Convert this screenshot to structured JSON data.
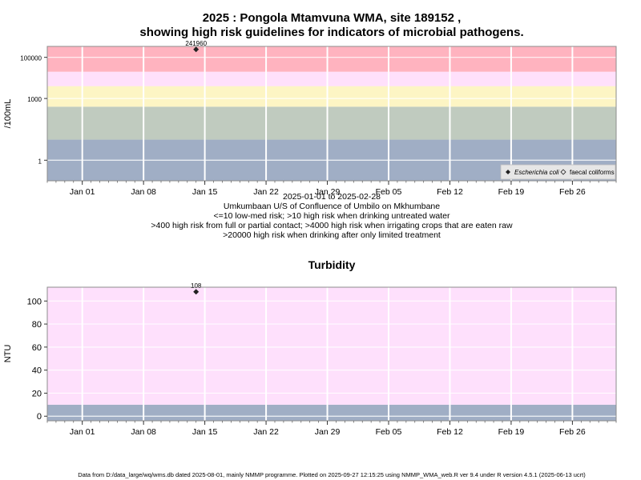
{
  "main_title": [
    "2025 : Pongola Mtamvuna WMA, site 189152 ,",
    "showing high risk guidelines for indicators of microbial pathogens."
  ],
  "colors": {
    "risk_red": "#ffb3bf",
    "risk_pink": "#ffe0fb",
    "risk_yellow": "#fdf5c4",
    "risk_green": "#c0cbbf",
    "risk_blue": "#a0aec5",
    "turb_pink": "#fee0fc",
    "turb_blue": "#a0aec5",
    "grid": "#ffffff",
    "point": "#222222"
  },
  "chart_data": [
    {
      "type": "scatter",
      "ylabel": "/100mL",
      "yscale": "log",
      "ylim": [
        0.1,
        340000
      ],
      "xlim": [
        "2024-12-28",
        "2025-03-03"
      ],
      "yticks": [
        1,
        1000,
        100000
      ],
      "ytick_labels": [
        "1",
        "1000",
        "100000"
      ],
      "xticks": [
        "2025-01-01",
        "2025-01-08",
        "2025-01-15",
        "2025-01-22",
        "2025-01-29",
        "2025-02-05",
        "2025-02-12",
        "2025-02-19",
        "2025-02-26"
      ],
      "xtick_labels": [
        "Jan 01",
        "Jan 08",
        "Jan 15",
        "Jan 22",
        "Jan 29",
        "Feb 05",
        "Feb 12",
        "Feb 19",
        "Feb 26"
      ],
      "bands": [
        {
          "from": 0.1,
          "to": 10,
          "color": "#a0aec5"
        },
        {
          "from": 10,
          "to": 400,
          "color": "#c0cbbf"
        },
        {
          "from": 400,
          "to": 4000,
          "color": "#fdf5c4"
        },
        {
          "from": 4000,
          "to": 20000,
          "color": "#ffe0fb"
        },
        {
          "from": 20000,
          "to": 340000,
          "color": "#ffb3bf"
        }
      ],
      "series": [
        {
          "name": "Escherichia coli",
          "marker": "filled-diamond",
          "points": [
            {
              "x": "2025-01-14",
              "y": 241960,
              "label": "241960"
            }
          ]
        },
        {
          "name": "faecal coliforms",
          "marker": "open-diamond",
          "points": []
        }
      ],
      "legend_position": "bottom-right",
      "grid": true,
      "caption": [
        "2025-01-01 to 2025-02-28",
        "Umkumbaan U/S of Confluence of Umbilo on Mkhumbane",
        "<=10 low-med risk; >10 high risk when drinking untreated water",
        ">400 high risk from full or partial contact; >4000 high risk when irrigating crops that are eaten raw",
        ">20000 high risk when drinking after only limited treatment"
      ]
    },
    {
      "type": "scatter",
      "title": "Turbidity",
      "ylabel": "NTU",
      "ylim": [
        -4,
        112
      ],
      "xlim": [
        "2024-12-28",
        "2025-03-03"
      ],
      "yticks": [
        0,
        20,
        40,
        60,
        80,
        100
      ],
      "ytick_labels": [
        "0",
        "20",
        "40",
        "60",
        "80",
        "100"
      ],
      "xticks": [
        "2025-01-01",
        "2025-01-08",
        "2025-01-15",
        "2025-01-22",
        "2025-01-29",
        "2025-02-05",
        "2025-02-12",
        "2025-02-19",
        "2025-02-26"
      ],
      "xtick_labels": [
        "Jan 01",
        "Jan 08",
        "Jan 15",
        "Jan 22",
        "Jan 29",
        "Feb 05",
        "Feb 12",
        "Feb 19",
        "Feb 26"
      ],
      "bands": [
        {
          "from": -4,
          "to": 10,
          "color": "#a0aec5"
        },
        {
          "from": 10,
          "to": 112,
          "color": "#fee0fc"
        }
      ],
      "series": [
        {
          "points": [
            {
              "x": "2025-01-14",
              "y": 108,
              "label": "108"
            }
          ]
        }
      ],
      "grid": true
    }
  ],
  "footer": "Data from D:/data_large/wq/wms.db dated 2025-08-01, mainly NMMP programme. Plotted on 2025-09-27 12:15:25 using NMMP_WMA_web.R ver 9.4 under R version 4.5.1 (2025-06-13 ucrt)"
}
